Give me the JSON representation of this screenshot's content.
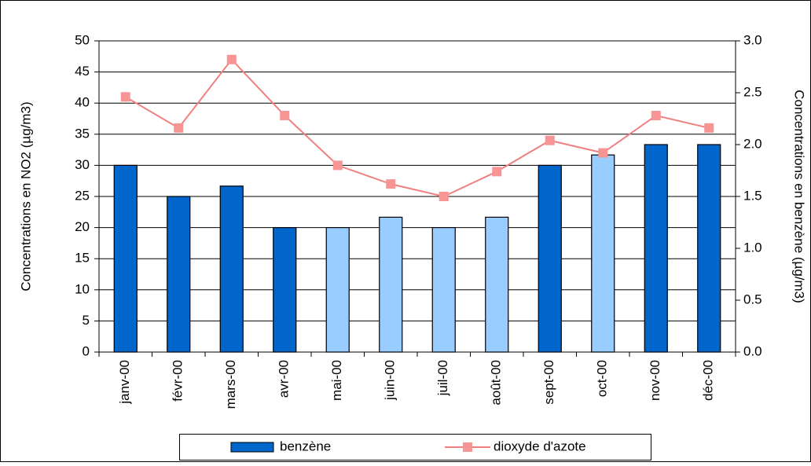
{
  "chart_data": {
    "type": "bar",
    "categories": [
      "janv-00",
      "févr-00",
      "mars-00",
      "avr-00",
      "mai-00",
      "juin-00",
      "juil-00",
      "août-00",
      "sept-00",
      "oct-00",
      "nov-00",
      "déc-00"
    ],
    "series": [
      {
        "name": "benzène",
        "type": "bar",
        "axis": "y2",
        "color": "#0066cc",
        "colors": [
          "#0066cc",
          "#0066cc",
          "#0066cc",
          "#0066cc",
          "#99ccff",
          "#99ccff",
          "#99ccff",
          "#99ccff",
          "#0066cc",
          "#99ccff",
          "#0066cc",
          "#0066cc"
        ],
        "values": [
          1.8,
          1.5,
          1.6,
          1.2,
          1.2,
          1.3,
          1.2,
          1.3,
          1.8,
          1.9,
          2.0,
          2.0
        ]
      },
      {
        "name": "dioxyde d'azote",
        "type": "line",
        "color": "#f08080",
        "marker_color": "#f79494",
        "values": [
          41,
          36,
          47,
          38,
          30,
          27,
          25,
          29,
          34,
          32,
          38,
          36
        ]
      }
    ],
    "ylabel": "Concentrations en NO2 (µg/m3)",
    "y2label": "Concentrations en benzène (µg/m3)",
    "ylim": [
      0,
      50
    ],
    "yticks": [
      0,
      5,
      10,
      15,
      20,
      25,
      30,
      35,
      40,
      45,
      50
    ],
    "y2lim": [
      0,
      3
    ],
    "y2ticks": [
      {
        "value": 0,
        "label": "0.0"
      },
      0.5,
      {
        "value": 1,
        "label": "1.0"
      },
      1.5,
      {
        "value": 2,
        "label": "2.0"
      },
      2.5,
      {
        "value": 3,
        "label": "3.0"
      }
    ],
    "grid": true,
    "legend": "bottom"
  }
}
